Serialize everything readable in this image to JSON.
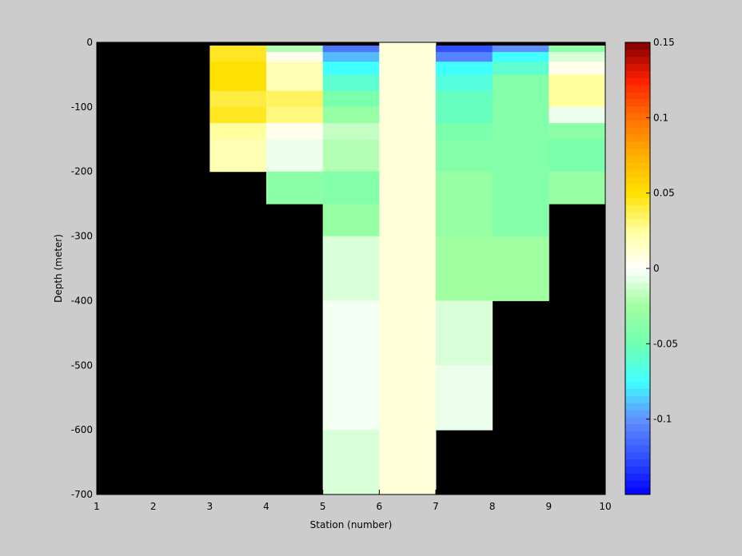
{
  "chart_data": {
    "type": "heatmap",
    "xlabel": "Station (number)",
    "ylabel": "Depth (meter)",
    "x": [
      1,
      2,
      3,
      4,
      5,
      6,
      7,
      8,
      9,
      10
    ],
    "y": [
      0,
      -5,
      -15,
      -30,
      -50,
      -75,
      -100,
      -125,
      -150,
      -200,
      -250,
      -300,
      -400,
      -500,
      -600,
      -700
    ],
    "values": [
      [
        null,
        null,
        null,
        null,
        null,
        null,
        null,
        null,
        null,
        null,
        null,
        null,
        null,
        null,
        null
      ],
      [
        null,
        null,
        null,
        null,
        null,
        null,
        null,
        null,
        null,
        null,
        null,
        null,
        null,
        null,
        null
      ],
      [
        null,
        0.045,
        0.045,
        0.05,
        0.05,
        0.04,
        0.045,
        0.025,
        0.02,
        null,
        null,
        null,
        null,
        null,
        null
      ],
      [
        null,
        -0.02,
        0.005,
        0.02,
        0.02,
        0.035,
        0.03,
        0.005,
        -0.005,
        -0.035,
        null,
        null,
        null,
        null,
        null
      ],
      [
        null,
        -0.11,
        -0.09,
        -0.075,
        -0.06,
        -0.045,
        -0.03,
        -0.015,
        -0.02,
        -0.04,
        -0.03,
        -0.01,
        -0.003,
        -0.003,
        -0.01
      ],
      [
        0.01,
        0.01,
        0.01,
        0.01,
        0.01,
        0.01,
        0.01,
        0.01,
        0.01,
        0.01,
        0.01,
        0.01,
        0.01,
        0.01,
        0.01
      ],
      [
        null,
        -0.125,
        -0.105,
        -0.075,
        -0.065,
        -0.055,
        -0.055,
        -0.045,
        -0.04,
        -0.03,
        -0.03,
        -0.025,
        -0.01,
        -0.005,
        null
      ],
      [
        null,
        -0.1,
        -0.075,
        -0.06,
        -0.04,
        -0.04,
        -0.04,
        -0.04,
        -0.04,
        -0.04,
        -0.04,
        -0.025,
        null,
        null,
        null
      ],
      [
        null,
        -0.035,
        -0.01,
        0.005,
        0.025,
        0.025,
        -0.005,
        -0.035,
        -0.045,
        -0.03,
        null,
        null,
        null,
        null,
        null
      ]
    ],
    "xlim": [
      1,
      10
    ],
    "ylim": [
      -700,
      0
    ],
    "xticks": [
      1,
      2,
      3,
      4,
      5,
      6,
      7,
      8,
      9,
      10
    ],
    "yticks": [
      0,
      -100,
      -200,
      -300,
      -400,
      -500,
      -600,
      -700
    ],
    "clim": [
      -0.15,
      0.15
    ],
    "cticks": [
      0.15,
      0.1,
      0.05,
      0,
      -0.05,
      -0.1
    ],
    "colormap": [
      "#0000ff",
      "#3050ff",
      "#6090ff",
      "#40ffff",
      "#70ffb0",
      "#a0ffa0",
      "#ffffff",
      "#ffffa0",
      "#ffe000",
      "#ffb000",
      "#ff7000",
      "#ff2000",
      "#800000"
    ],
    "missing_color": "#000000",
    "background": "#cccccc"
  }
}
